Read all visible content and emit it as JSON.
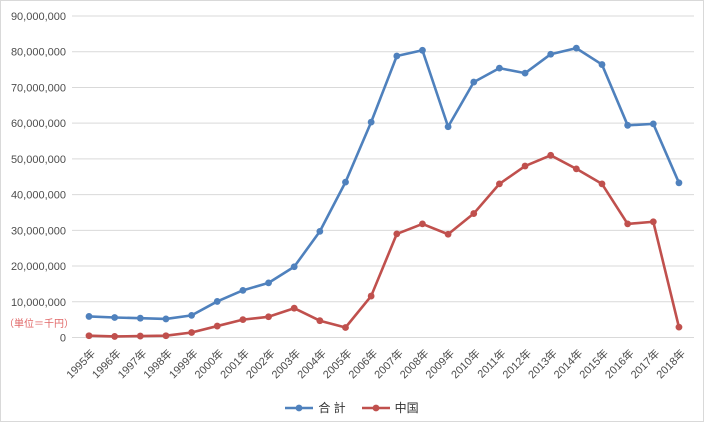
{
  "unit_note": "（単位＝千円）",
  "colors": {
    "series_total": "#4F81BD",
    "series_china": "#C0504D",
    "gridline": "#D9D9D9",
    "axis_text": "#4D4D4D",
    "unit_note_text": "#E06666",
    "background": "#FFFFFF"
  },
  "chart_data": {
    "type": "line",
    "title": "",
    "xlabel": "",
    "ylabel": "",
    "unit_note": "（単位＝千円）",
    "categories": [
      "1995年",
      "1996年",
      "1997年",
      "1998年",
      "1999年",
      "2000年",
      "2001年",
      "2002年",
      "2003年",
      "2004年",
      "2005年",
      "2006年",
      "2007年",
      "2008年",
      "2009年",
      "2010年",
      "2011年",
      "2012年",
      "2013年",
      "2014年",
      "2015年",
      "2016年",
      "2017年",
      "2018年"
    ],
    "series": [
      {
        "name": "合 計",
        "color": "#4F81BD",
        "values": [
          5900000,
          5600000,
          5400000,
          5200000,
          6200000,
          10100000,
          13200000,
          15300000,
          19800000,
          29700000,
          43500000,
          60300000,
          78800000,
          80400000,
          59000000,
          71500000,
          75400000,
          74000000,
          79300000,
          81000000,
          76400000,
          59400000,
          59800000,
          43300000
        ]
      },
      {
        "name": "中国",
        "color": "#C0504D",
        "values": [
          500000,
          300000,
          400000,
          500000,
          1400000,
          3200000,
          5000000,
          5800000,
          8200000,
          4700000,
          2800000,
          11600000,
          29000000,
          31800000,
          28900000,
          34700000,
          43000000,
          48000000,
          51000000,
          47200000,
          43000000,
          31800000,
          32400000,
          2900000
        ]
      }
    ],
    "ylim": [
      0,
      90000000
    ],
    "ytick_interval": 10000000,
    "ytick_labels": [
      "0",
      "10,000,000",
      "20,000,000",
      "30,000,000",
      "40,000,000",
      "50,000,000",
      "60,000,000",
      "70,000,000",
      "80,000,000",
      "90,000,000"
    ],
    "grid": "horizontal",
    "legend_position": "bottom",
    "marker": "circle"
  }
}
